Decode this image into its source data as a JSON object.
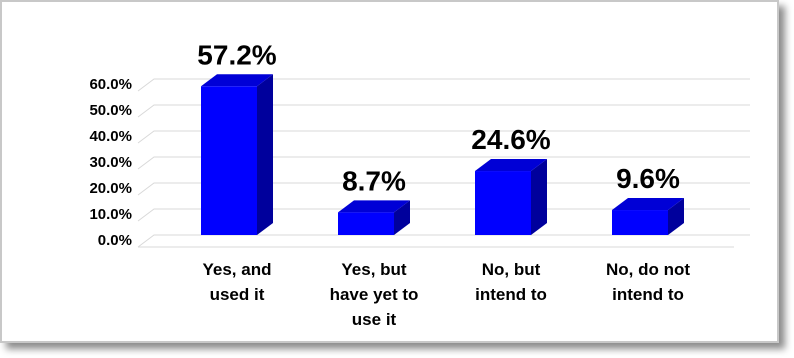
{
  "chart_data": {
    "type": "bar",
    "style": "3d-column",
    "categories": [
      [
        "Yes, and",
        "used it"
      ],
      [
        "Yes, but",
        "have yet to",
        "use it"
      ],
      [
        "No, but",
        "intend to"
      ],
      [
        "No, do not",
        "intend to"
      ]
    ],
    "values": [
      57.2,
      8.7,
      24.6,
      9.6
    ],
    "data_labels": [
      "57.2%",
      "8.7%",
      "24.6%",
      "9.6%"
    ],
    "yticks": [
      "0.0%",
      "10.0%",
      "20.0%",
      "30.0%",
      "40.0%",
      "50.0%",
      "60.0%"
    ],
    "ylim": [
      0,
      60
    ],
    "grid": true,
    "legend": "none",
    "colors": {
      "front": "#0000ff",
      "side": "#00009c",
      "top": "#0000d6",
      "grid": "#d9d9d9"
    }
  }
}
